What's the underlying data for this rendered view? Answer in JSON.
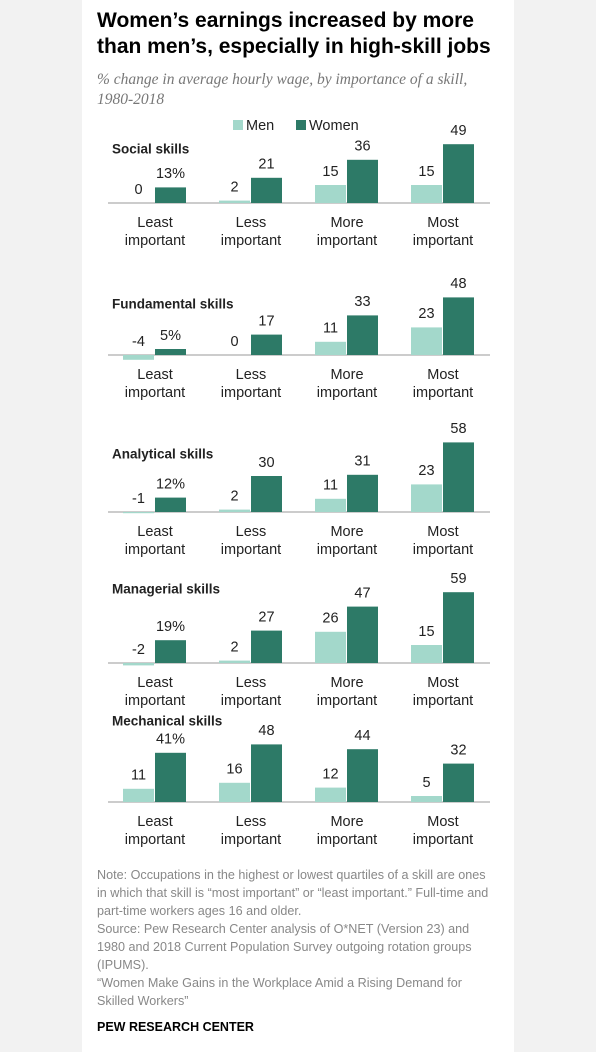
{
  "title": "Women’s earnings increased by more than men’s, especially in high-skill jobs",
  "subtitle": "% change in average hourly wage, by importance of a skill, 1980-2018",
  "chart_data": [
    {
      "type": "bar",
      "title": "Social skills",
      "categories": [
        "Least important",
        "Less important",
        "More important",
        "Most important"
      ],
      "series": [
        {
          "name": "Men",
          "color": "#a3d8cb",
          "values": [
            0,
            2,
            15,
            15
          ]
        },
        {
          "name": "Women",
          "color": "#2d7a67",
          "values": [
            13,
            21,
            36,
            49
          ],
          "value_labels": [
            "13%",
            "21",
            "36",
            "49"
          ]
        }
      ]
    },
    {
      "type": "bar",
      "title": "Fundamental skills",
      "categories": [
        "Least important",
        "Less important",
        "More important",
        "Most important"
      ],
      "series": [
        {
          "name": "Men",
          "color": "#a3d8cb",
          "values": [
            -4,
            0,
            11,
            23
          ]
        },
        {
          "name": "Women",
          "color": "#2d7a67",
          "values": [
            5,
            17,
            33,
            48
          ],
          "value_labels": [
            "5%",
            "17",
            "33",
            "48"
          ]
        }
      ]
    },
    {
      "type": "bar",
      "title": "Analytical skills",
      "categories": [
        "Least important",
        "Less important",
        "More important",
        "Most important"
      ],
      "series": [
        {
          "name": "Men",
          "color": "#a3d8cb",
          "values": [
            -1,
            2,
            11,
            23
          ]
        },
        {
          "name": "Women",
          "color": "#2d7a67",
          "values": [
            12,
            30,
            31,
            58
          ],
          "value_labels": [
            "12%",
            "30",
            "31",
            "58"
          ]
        }
      ]
    },
    {
      "type": "bar",
      "title": "Managerial skills",
      "categories": [
        "Least important",
        "Less important",
        "More important",
        "Most important"
      ],
      "series": [
        {
          "name": "Men",
          "color": "#a3d8cb",
          "values": [
            -2,
            2,
            26,
            15
          ]
        },
        {
          "name": "Women",
          "color": "#2d7a67",
          "values": [
            19,
            27,
            47,
            59
          ],
          "value_labels": [
            "19%",
            "27",
            "47",
            "59"
          ]
        }
      ]
    },
    {
      "type": "bar",
      "title": "Mechanical skills",
      "categories": [
        "Least important",
        "Less important",
        "More important",
        "Most important"
      ],
      "series": [
        {
          "name": "Men",
          "color": "#a3d8cb",
          "values": [
            11,
            16,
            12,
            5
          ]
        },
        {
          "name": "Women",
          "color": "#2d7a67",
          "values": [
            41,
            48,
            44,
            32
          ],
          "value_labels": [
            "41%",
            "48",
            "44",
            "32"
          ]
        }
      ]
    }
  ],
  "notes": [
    "Note: Occupations in the highest or lowest quartiles of a skill are ones in which that skill is “most important” or “least important.” Full-time and part-time workers ages 16 and older.",
    "Source: Pew Research Center analysis of O*NET (Version 23) and 1980 and 2018 Current Population Survey outgoing rotation groups (IPUMS).",
    "“Women Make Gains in the Workplace Amid a Rising Demand for Skilled Workers”"
  ],
  "footer": "PEW RESEARCH CENTER"
}
